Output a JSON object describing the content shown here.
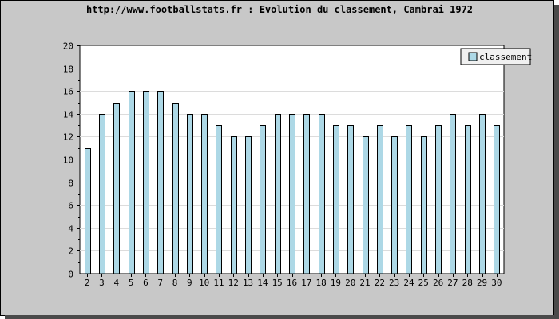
{
  "chart_data": {
    "type": "bar",
    "title": "http://www.footballstats.fr : Evolution du classement, Cambrai 1972",
    "categories": [
      "2",
      "3",
      "4",
      "5",
      "6",
      "7",
      "8",
      "9",
      "10",
      "11",
      "12",
      "13",
      "14",
      "15",
      "16",
      "17",
      "18",
      "19",
      "20",
      "21",
      "22",
      "23",
      "24",
      "25",
      "26",
      "27",
      "28",
      "29",
      "30"
    ],
    "series": [
      {
        "name": "classement",
        "values": [
          11,
          14,
          15,
          16,
          16,
          16,
          15,
          14,
          14,
          13,
          12,
          12,
          13,
          14,
          14,
          14,
          14,
          13,
          13,
          12,
          13,
          12,
          13,
          12,
          13,
          14,
          13,
          14,
          13
        ]
      }
    ],
    "ylim": [
      0,
      20
    ],
    "yticks": [
      0,
      2,
      4,
      6,
      8,
      10,
      12,
      14,
      16,
      18,
      20
    ],
    "xlabel": "",
    "ylabel": "",
    "grid": true,
    "legend_position": "top-right",
    "colors": {
      "bar_fill": "#add8e6",
      "bar_stroke": "#000000",
      "plot_background": "#ffffff",
      "frame_background": "#c8c8c8",
      "grid": "#dcdcdc"
    }
  }
}
